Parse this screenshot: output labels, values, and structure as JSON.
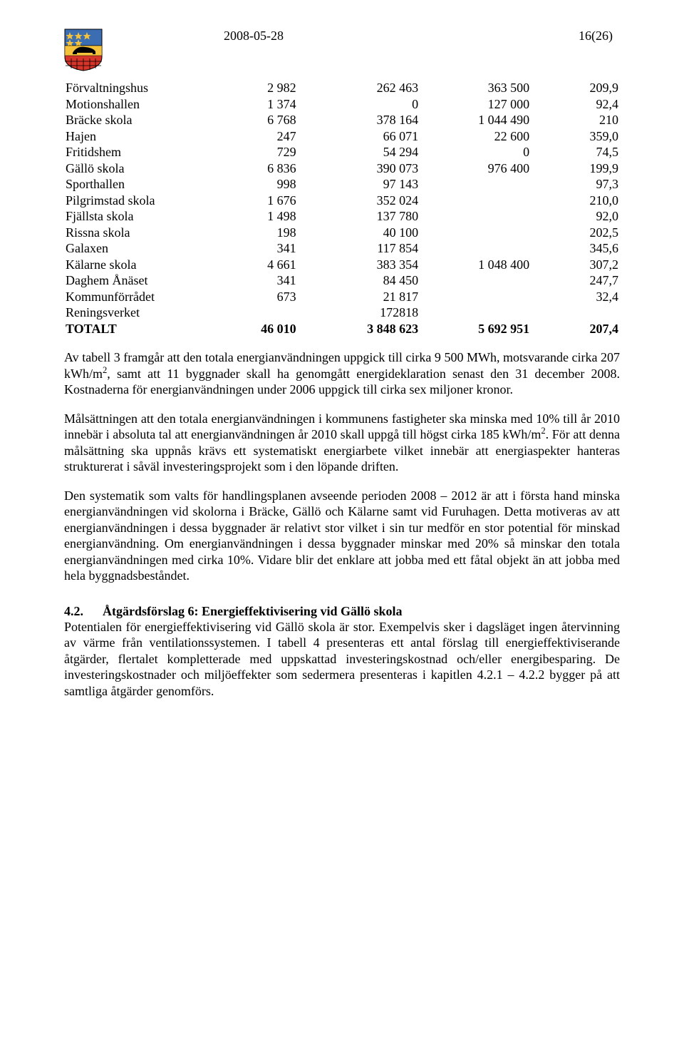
{
  "header": {
    "date": "2008-05-28",
    "page_label": "16(26)"
  },
  "crest": {
    "shield_top": "#3b6db3",
    "shield_bottom": "#d7342a",
    "star": "#f5c33b",
    "bear": "#000000",
    "border": "#000000"
  },
  "table": {
    "col_widths_pct": [
      28,
      14,
      22,
      20,
      16
    ],
    "rows": [
      {
        "label": "Förvaltningshus",
        "c1": "2 982",
        "c2": "262 463",
        "c3": "363 500",
        "c4": "209,9"
      },
      {
        "label": "Motionshallen",
        "c1": "1 374",
        "c2": "0",
        "c3": "127 000",
        "c4": "92,4"
      },
      {
        "label": "Bräcke skola",
        "c1": "6 768",
        "c2": "378 164",
        "c3": "1 044 490",
        "c4": "210"
      },
      {
        "label": "Hajen",
        "c1": "247",
        "c2": "66 071",
        "c3": "22 600",
        "c4": "359,0"
      },
      {
        "label": "Fritidshem",
        "c1": "729",
        "c2": "54 294",
        "c3": "0",
        "c4": "74,5"
      },
      {
        "label": "Gällö skola",
        "c1": "6 836",
        "c2": "390 073",
        "c3": "976 400",
        "c4": "199,9"
      },
      {
        "label": "Sporthallen",
        "c1": "998",
        "c2": "97 143",
        "c3": "",
        "c4": "97,3"
      },
      {
        "label": "Pilgrimstad skola",
        "c1": "1 676",
        "c2": "352 024",
        "c3": "",
        "c4": "210,0"
      },
      {
        "label": "Fjällsta skola",
        "c1": "1 498",
        "c2": "137 780",
        "c3": "",
        "c4": "92,0"
      },
      {
        "label": "Rissna skola",
        "c1": "198",
        "c2": "40 100",
        "c3": "",
        "c4": "202,5"
      },
      {
        "label": "Galaxen",
        "c1": "341",
        "c2": "117 854",
        "c3": "",
        "c4": "345,6"
      },
      {
        "label": "Kälarne skola",
        "c1": "4 661",
        "c2": "383 354",
        "c3": "1 048 400",
        "c4": "307,2"
      },
      {
        "label": "Daghem Ånäset",
        "c1": "341",
        "c2": "84 450",
        "c3": "",
        "c4": "247,7"
      },
      {
        "label": "Kommunförrådet",
        "c1": "673",
        "c2": "21 817",
        "c3": "",
        "c4": "32,4"
      },
      {
        "label": "Reningsverket",
        "c1": "",
        "c2": "172818",
        "c3": "",
        "c4": ""
      }
    ],
    "total": {
      "label": "TOTALT",
      "c1": "46 010",
      "c2": "3 848 623",
      "c3": "5 692 951",
      "c4": "207,4"
    }
  },
  "paragraphs": {
    "p1a": "Av tabell 3 framgår att den totala energianvändningen uppgick till cirka 9 500 MWh, motsvarande cirka 207 kWh/m",
    "p1b": ", samt att 11 byggnader skall ha genomgått energideklaration senast den 31 december 2008. Kostnaderna för energianvändningen under 2006 uppgick till cirka sex miljoner kronor.",
    "p2a": "Målsättningen att den totala energianvändningen i kommunens fastigheter ska minska med 10% till år 2010 innebär i absoluta tal att energianvändningen år 2010 skall uppgå till högst cirka 185 kWh/m",
    "p2b": ". För att denna målsättning ska uppnås krävs ett systematiskt energiarbete vilket innebär att energiaspekter hanteras strukturerat i såväl investeringsprojekt som i den löpande driften.",
    "p3": "Den systematik som valts för handlingsplanen avseende perioden 2008 – 2012 är att i första hand minska energianvändningen vid skolorna i Bräcke, Gällö och Kälarne samt vid Furuhagen. Detta motiveras av att energianvändningen i dessa byggnader är relativt stor vilket i sin tur medför en stor potential för minskad energianvändning. Om energianvändningen i dessa byggnader minskar med 20% så minskar den totala energianvändningen med cirka 10%. Vidare blir det enklare att jobba med ett fåtal objekt än att jobba med hela byggnadsbeståndet.",
    "section_num": "4.2.",
    "section_title": "Åtgärdsförslag 6: Energieffektivisering vid Gällö skola",
    "p4": "Potentialen för energieffektivisering vid Gällö skola är stor. Exempelvis sker i dagsläget ingen återvinning av värme från ventilationssystemen. I tabell 4 presenteras ett antal förslag till energieffektiviserande åtgärder, flertalet kompletterade med uppskattad investeringskostnad och/eller energibesparing. De investeringskostnader och miljöeffekter som sedermera presenteras i kapitlen 4.2.1 – 4.2.2 bygger på att samtliga åtgärder genomförs."
  }
}
